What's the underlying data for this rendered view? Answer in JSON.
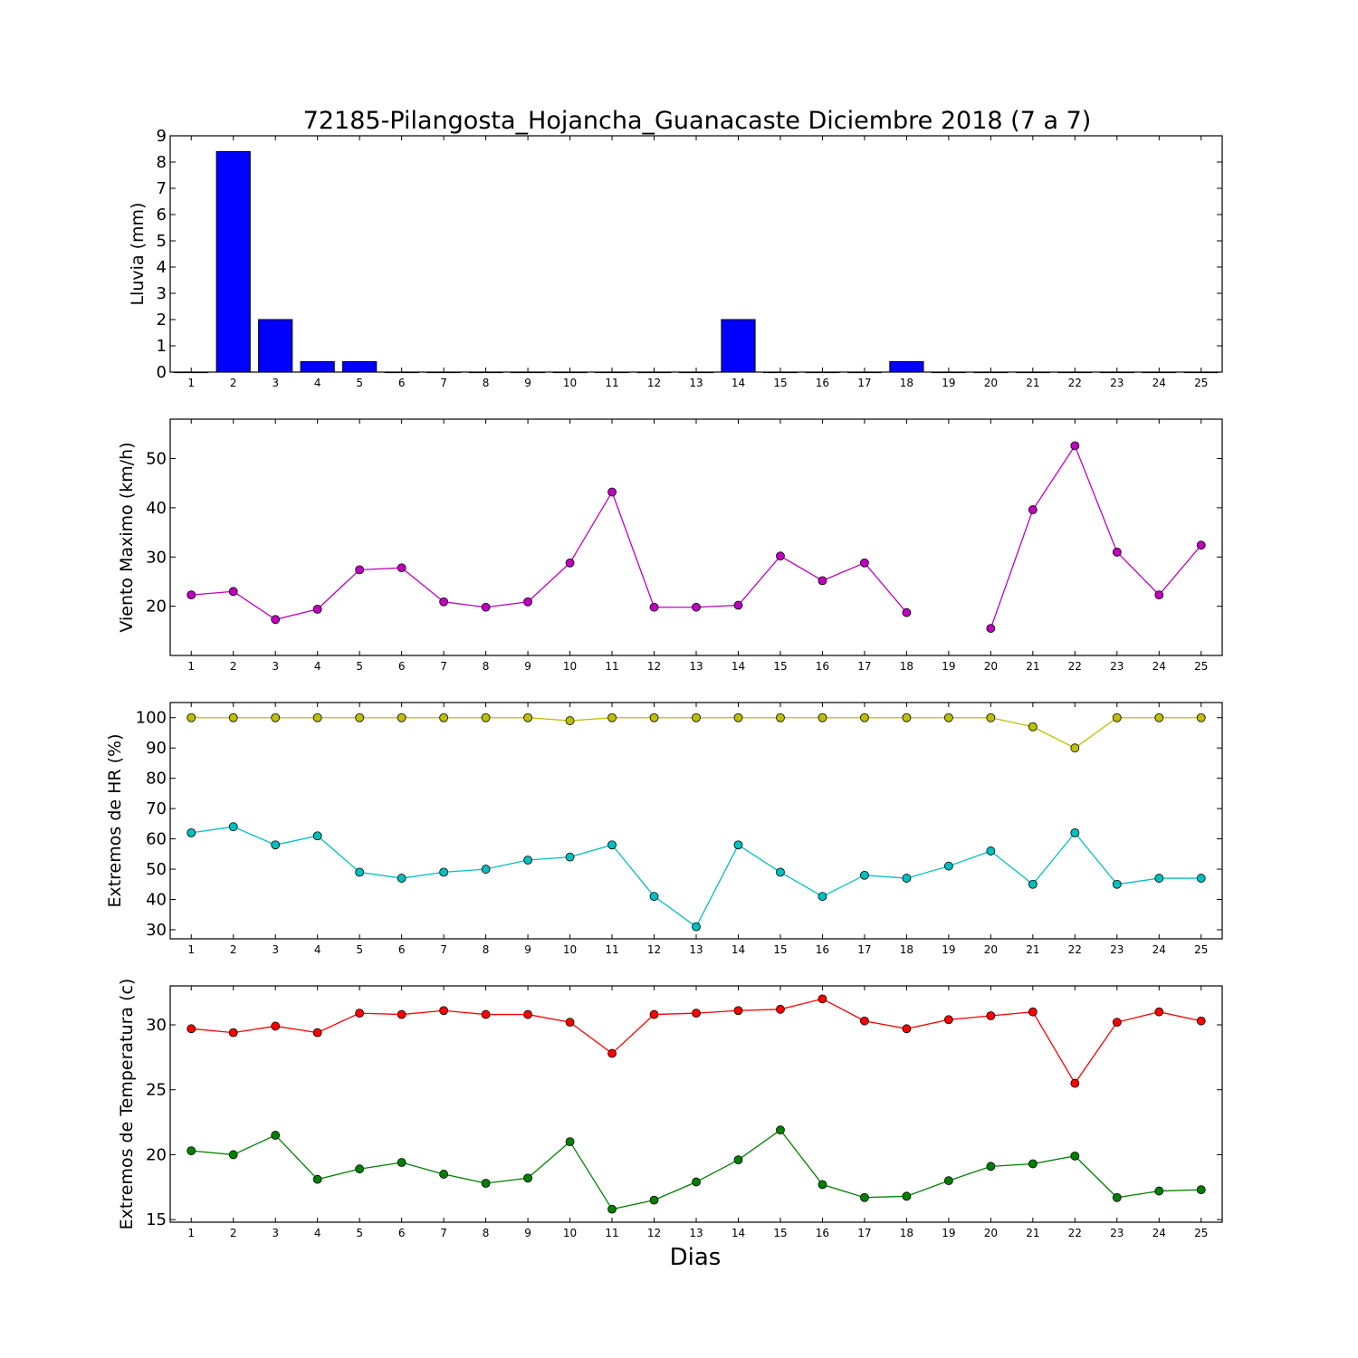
{
  "title": "72185-Pilangosta_Hojancha_Guanacaste Diciembre 2018  (7 a 7)",
  "xlabel": "Dias",
  "chart_data": [
    {
      "type": "bar",
      "ylabel": "Lluvia (mm)",
      "categories": [
        1,
        2,
        3,
        4,
        5,
        6,
        7,
        8,
        9,
        10,
        11,
        12,
        13,
        14,
        15,
        16,
        17,
        18,
        19,
        20,
        21,
        22,
        23,
        24,
        25
      ],
      "values": [
        0,
        8.4,
        2.0,
        0.4,
        0.4,
        0,
        0,
        0,
        0,
        0,
        0,
        0,
        0,
        2.0,
        0,
        0,
        0,
        0.4,
        0,
        0,
        0,
        0,
        0,
        0,
        0
      ],
      "ylim": [
        0,
        9
      ],
      "yticks": [
        0,
        1,
        2,
        3,
        4,
        5,
        6,
        7,
        8,
        9
      ],
      "color": "#0000ff"
    },
    {
      "type": "line",
      "ylabel": "Viento Maximo (km/h)",
      "x": [
        1,
        2,
        3,
        4,
        5,
        6,
        7,
        8,
        9,
        10,
        11,
        12,
        13,
        14,
        15,
        16,
        17,
        18,
        19,
        20,
        21,
        22,
        23,
        24,
        25
      ],
      "series": [
        {
          "color": "#bf00bf",
          "values": [
            22.3,
            23.0,
            17.3,
            19.4,
            27.4,
            27.8,
            20.9,
            19.8,
            20.9,
            28.8,
            43.2,
            19.8,
            19.8,
            20.2,
            30.2,
            25.2,
            28.8,
            18.7,
            null,
            15.5,
            39.6,
            52.6,
            31.0,
            22.3,
            32.4
          ]
        }
      ],
      "ylim": [
        10,
        58
      ],
      "yticks": [
        20,
        30,
        40,
        50
      ]
    },
    {
      "type": "line",
      "ylabel": "Extremos de HR (%)",
      "x": [
        1,
        2,
        3,
        4,
        5,
        6,
        7,
        8,
        9,
        10,
        11,
        12,
        13,
        14,
        15,
        16,
        17,
        18,
        19,
        20,
        21,
        22,
        23,
        24,
        25
      ],
      "series": [
        {
          "color": "#bfbf00",
          "values": [
            100,
            100,
            100,
            100,
            100,
            100,
            100,
            100,
            100,
            99,
            100,
            100,
            100,
            100,
            100,
            100,
            100,
            100,
            100,
            100,
            97,
            90,
            100,
            100,
            100
          ]
        },
        {
          "color": "#00bfbf",
          "values": [
            62,
            64,
            58,
            61,
            49,
            47,
            49,
            50,
            53,
            54,
            58,
            41,
            31,
            58,
            49,
            41,
            48,
            47,
            51,
            56,
            45,
            62,
            45,
            47,
            47
          ]
        }
      ],
      "ylim": [
        27,
        105
      ],
      "yticks": [
        30,
        40,
        50,
        60,
        70,
        80,
        90,
        100
      ]
    },
    {
      "type": "line",
      "ylabel": "Extremos de Temperatura (c)",
      "x": [
        1,
        2,
        3,
        4,
        5,
        6,
        7,
        8,
        9,
        10,
        11,
        12,
        13,
        14,
        15,
        16,
        17,
        18,
        19,
        20,
        21,
        22,
        23,
        24,
        25
      ],
      "series": [
        {
          "color": "#ff0000",
          "values": [
            29.7,
            29.4,
            29.9,
            29.4,
            30.9,
            30.8,
            31.1,
            30.8,
            30.8,
            30.2,
            27.8,
            30.8,
            30.9,
            31.1,
            31.2,
            32.0,
            30.3,
            29.7,
            30.4,
            30.7,
            31.0,
            25.5,
            30.2,
            31.0,
            30.3
          ]
        },
        {
          "color": "#008000",
          "values": [
            20.3,
            20.0,
            21.5,
            18.1,
            18.9,
            19.4,
            18.5,
            17.8,
            18.2,
            21.0,
            15.8,
            16.5,
            17.9,
            19.6,
            21.9,
            17.7,
            16.7,
            16.8,
            18.0,
            19.1,
            19.3,
            19.9,
            16.7,
            17.2,
            17.3
          ]
        }
      ],
      "ylim": [
        14.8,
        33
      ],
      "yticks": [
        15,
        20,
        25,
        30
      ]
    }
  ]
}
